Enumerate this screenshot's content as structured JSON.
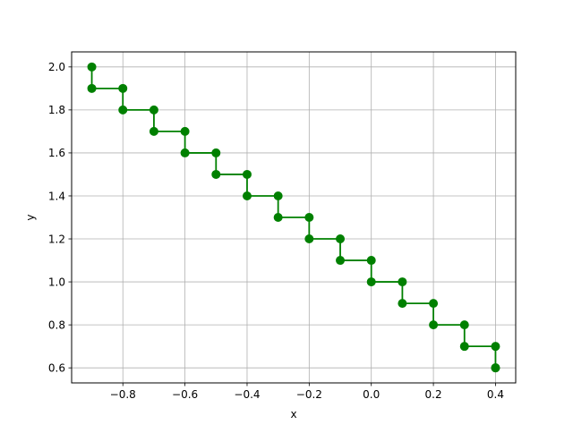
{
  "chart_data": {
    "type": "line",
    "title": "",
    "xlabel": "x",
    "ylabel": "y",
    "xlim": [
      -0.965,
      0.465
    ],
    "ylim": [
      0.53,
      2.07
    ],
    "grid": true,
    "legend": "none",
    "xticks": [
      -0.8,
      -0.6,
      -0.4,
      -0.2,
      0.0,
      0.2,
      0.4
    ],
    "xtick_labels": [
      "−0.8",
      "−0.6",
      "−0.4",
      "−0.2",
      "0.0",
      "0.2",
      "0.4"
    ],
    "yticks": [
      0.6,
      0.8,
      1.0,
      1.2,
      1.4,
      1.6,
      1.8,
      2.0
    ],
    "ytick_labels": [
      "0.6",
      "0.8",
      "1.0",
      "1.2",
      "1.4",
      "1.6",
      "1.8",
      "2.0"
    ],
    "series": [
      {
        "color": "#008000",
        "marker": "circle",
        "x": [
          -0.9,
          -0.9,
          -0.8,
          -0.8,
          -0.7,
          -0.7,
          -0.6,
          -0.6,
          -0.5,
          -0.5,
          -0.4,
          -0.4,
          -0.3,
          -0.3,
          -0.2,
          -0.2,
          -0.1,
          -0.1,
          0.0,
          0.0,
          0.1,
          0.1,
          0.2,
          0.2,
          0.3,
          0.3,
          0.4,
          0.4,
          0.4
        ],
        "y": [
          2.0,
          1.9,
          1.9,
          1.8,
          1.8,
          1.7,
          1.7,
          1.6,
          1.6,
          1.5,
          1.5,
          1.4,
          1.4,
          1.3,
          1.3,
          1.2,
          1.2,
          1.1,
          1.1,
          1.0,
          1.0,
          0.9,
          0.9,
          0.8,
          0.8,
          0.7,
          0.7,
          0.6,
          0.6
        ]
      }
    ]
  }
}
